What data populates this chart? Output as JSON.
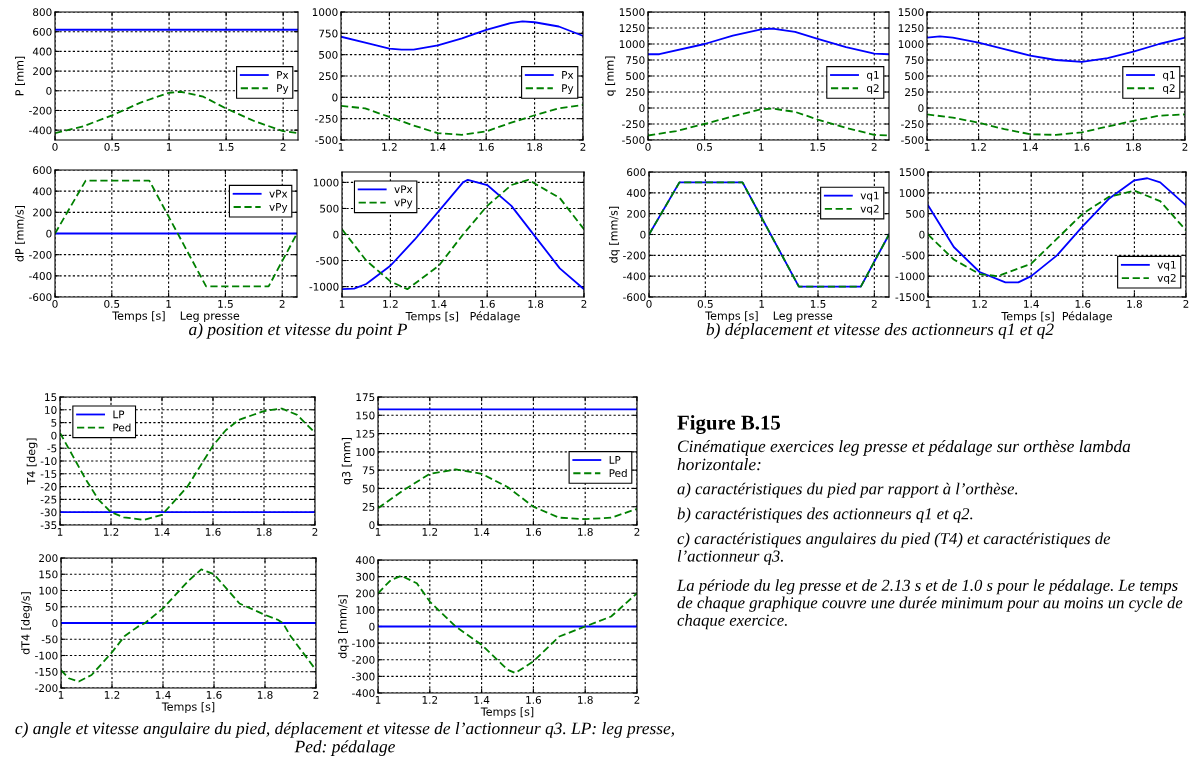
{
  "chart_data": [
    {
      "type": "line",
      "ylabel": "P [mm]",
      "xlim": [
        0,
        2.13
      ],
      "xticks": [
        0,
        0.5,
        1,
        1.5,
        2
      ],
      "ylim": [
        -500,
        800
      ],
      "yticks": [
        -400,
        -200,
        0,
        200,
        400,
        600,
        800
      ],
      "grid": true,
      "legend": "right",
      "series": [
        {
          "name": "Px",
          "color": "#0000ff",
          "line_style": "solid",
          "x": [
            0,
            2.13
          ],
          "values": [
            620,
            620
          ]
        },
        {
          "name": "Py",
          "color": "#008000",
          "line_style": "dashed",
          "x": [
            0,
            0.25,
            0.5,
            0.75,
            1.0,
            1.1,
            1.3,
            1.5,
            1.75,
            2.0,
            2.13
          ],
          "values": [
            -430,
            -360,
            -250,
            -120,
            -20,
            -10,
            -60,
            -180,
            -310,
            -410,
            -430
          ]
        }
      ]
    },
    {
      "type": "line",
      "xlim": [
        1,
        2
      ],
      "xticks": [
        1,
        1.2,
        1.4,
        1.6,
        1.8,
        2
      ],
      "ylim": [
        -500,
        1000
      ],
      "yticks": [
        -500,
        -250,
        0,
        250,
        500,
        750,
        1000
      ],
      "grid": true,
      "legend": "right",
      "series": [
        {
          "name": "Px",
          "color": "#0000ff",
          "line_style": "solid",
          "x": [
            1.0,
            1.1,
            1.2,
            1.25,
            1.3,
            1.4,
            1.5,
            1.6,
            1.7,
            1.75,
            1.8,
            1.9,
            2.0
          ],
          "values": [
            710,
            640,
            570,
            560,
            560,
            610,
            690,
            790,
            870,
            890,
            880,
            830,
            720
          ]
        },
        {
          "name": "Py",
          "color": "#008000",
          "line_style": "dashed",
          "x": [
            1.0,
            1.1,
            1.2,
            1.3,
            1.4,
            1.5,
            1.6,
            1.7,
            1.8,
            1.9,
            2.0
          ],
          "values": [
            -100,
            -130,
            -230,
            -330,
            -420,
            -440,
            -400,
            -300,
            -210,
            -130,
            -90
          ]
        }
      ]
    },
    {
      "type": "line",
      "ylabel": "dP [mm/s]",
      "xlabel": "Temps [s]    Leg presse",
      "xlim": [
        0,
        2.13
      ],
      "xticks": [
        0,
        0.5,
        1,
        1.5,
        2
      ],
      "ylim": [
        -600,
        600
      ],
      "yticks": [
        -600,
        -400,
        -200,
        0,
        200,
        400,
        600
      ],
      "grid": true,
      "legend": "top right",
      "annotations": [
        "a) position et vitesse du point P"
      ],
      "series": [
        {
          "name": "vPx",
          "color": "#0000ff",
          "line_style": "solid",
          "x": [
            0,
            2.13
          ],
          "values": [
            0,
            0
          ]
        },
        {
          "name": "vPy",
          "color": "#008000",
          "line_style": "dashed",
          "x": [
            0,
            0.27,
            0.83,
            1.33,
            1.88,
            2.13
          ],
          "values": [
            0,
            500,
            500,
            -500,
            -500,
            0
          ]
        }
      ]
    },
    {
      "type": "line",
      "xlabel": "Temps [s]   Pédalage",
      "xlim": [
        1,
        2
      ],
      "xticks": [
        1,
        1.2,
        1.4,
        1.6,
        1.8,
        2
      ],
      "ylim": [
        -1200,
        1200
      ],
      "yticks": [
        -1000,
        -500,
        0,
        500,
        1000
      ],
      "grid": true,
      "legend": "top left",
      "series": [
        {
          "name": "vPx",
          "color": "#0000ff",
          "line_style": "solid",
          "x": [
            1.0,
            1.05,
            1.1,
            1.2,
            1.3,
            1.4,
            1.5,
            1.52,
            1.6,
            1.7,
            1.8,
            1.9,
            2.0
          ],
          "values": [
            -1050,
            -1040,
            -950,
            -600,
            -100,
            450,
            1000,
            1050,
            950,
            550,
            -50,
            -650,
            -1050
          ]
        },
        {
          "name": "vPy",
          "color": "#008000",
          "line_style": "dashed",
          "x": [
            1.0,
            1.1,
            1.2,
            1.27,
            1.4,
            1.5,
            1.6,
            1.7,
            1.77,
            1.9,
            2.0
          ],
          "values": [
            100,
            -500,
            -900,
            -1050,
            -600,
            0,
            550,
            950,
            1050,
            700,
            100
          ]
        }
      ]
    },
    {
      "type": "line",
      "ylabel": "q [mm]",
      "xlim": [
        0,
        2.13
      ],
      "xticks": [
        0,
        0.5,
        1,
        1.5,
        2
      ],
      "ylim": [
        -500,
        1500
      ],
      "yticks": [
        -500,
        -250,
        0,
        250,
        500,
        750,
        1000,
        1250,
        1500
      ],
      "grid": true,
      "legend": "right",
      "series": [
        {
          "name": "q1",
          "color": "#0000ff",
          "line_style": "solid",
          "x": [
            0,
            0.1,
            0.5,
            0.75,
            1.0,
            1.1,
            1.3,
            1.5,
            1.75,
            2.0,
            2.13
          ],
          "values": [
            840,
            840,
            1000,
            1130,
            1230,
            1240,
            1190,
            1080,
            950,
            850,
            840
          ]
        },
        {
          "name": "q2",
          "color": "#008000",
          "line_style": "dashed",
          "x": [
            0,
            0.25,
            0.5,
            0.75,
            1.0,
            1.1,
            1.3,
            1.5,
            1.75,
            2.0,
            2.13
          ],
          "values": [
            -430,
            -360,
            -250,
            -130,
            -20,
            -10,
            -60,
            -180,
            -310,
            -420,
            -430
          ]
        }
      ]
    },
    {
      "type": "line",
      "xlim": [
        1,
        2
      ],
      "xticks": [
        1,
        1.2,
        1.4,
        1.6,
        1.8,
        2
      ],
      "ylim": [
        -500,
        1500
      ],
      "yticks": [
        -500,
        -250,
        0,
        250,
        500,
        750,
        1000,
        1250,
        1500
      ],
      "grid": true,
      "legend": "right",
      "series": [
        {
          "name": "q1",
          "color": "#0000ff",
          "line_style": "solid",
          "x": [
            1.0,
            1.05,
            1.1,
            1.2,
            1.3,
            1.4,
            1.5,
            1.6,
            1.7,
            1.8,
            1.9,
            2.0
          ],
          "values": [
            1100,
            1120,
            1100,
            1020,
            920,
            820,
            750,
            720,
            780,
            880,
            1000,
            1100
          ]
        },
        {
          "name": "q2",
          "color": "#008000",
          "line_style": "dashed",
          "x": [
            1.0,
            1.1,
            1.2,
            1.3,
            1.4,
            1.5,
            1.6,
            1.7,
            1.8,
            1.9,
            2.0
          ],
          "values": [
            -100,
            -150,
            -230,
            -330,
            -410,
            -420,
            -380,
            -290,
            -200,
            -120,
            -100
          ]
        }
      ]
    },
    {
      "type": "line",
      "ylabel": "dq [mm/s]",
      "xlabel": "Temps [s]    Leg presse",
      "xlim": [
        0,
        2.13
      ],
      "xticks": [
        0,
        0.5,
        1,
        1.5,
        2
      ],
      "ylim": [
        -600,
        600
      ],
      "yticks": [
        -600,
        -400,
        -200,
        0,
        200,
        400,
        600
      ],
      "grid": true,
      "legend": "top right",
      "annotations": [
        "b) déplacement et vitesse des actionneurs q1 et q2"
      ],
      "series": [
        {
          "name": "vq1",
          "color": "#0000ff",
          "line_style": "solid",
          "x": [
            0,
            0.27,
            0.83,
            1.33,
            1.88,
            2.13
          ],
          "values": [
            0,
            500,
            500,
            -500,
            -500,
            0
          ]
        },
        {
          "name": "vq2",
          "color": "#008000",
          "line_style": "dashed",
          "x": [
            0,
            0.27,
            0.83,
            1.33,
            1.88,
            2.13
          ],
          "values": [
            0,
            500,
            500,
            -500,
            -500,
            0
          ]
        }
      ]
    },
    {
      "type": "line",
      "xlabel": "Temps [s]  Pédalage",
      "xlim": [
        1,
        2
      ],
      "xticks": [
        1,
        1.2,
        1.4,
        1.6,
        1.8,
        2
      ],
      "ylim": [
        -1500,
        1500
      ],
      "yticks": [
        -1500,
        -1000,
        -500,
        0,
        500,
        1000,
        1500
      ],
      "grid": true,
      "legend": "bottom right",
      "series": [
        {
          "name": "vq1",
          "color": "#0000ff",
          "line_style": "solid",
          "x": [
            1.0,
            1.1,
            1.2,
            1.3,
            1.35,
            1.4,
            1.5,
            1.6,
            1.7,
            1.8,
            1.85,
            1.9,
            2.0
          ],
          "values": [
            700,
            -300,
            -900,
            -1150,
            -1150,
            -1000,
            -500,
            200,
            850,
            1300,
            1350,
            1250,
            700
          ]
        },
        {
          "name": "vq2",
          "color": "#008000",
          "line_style": "dashed",
          "x": [
            1.0,
            1.1,
            1.2,
            1.27,
            1.4,
            1.5,
            1.6,
            1.7,
            1.8,
            1.9,
            2.0
          ],
          "values": [
            0,
            -600,
            -950,
            -1000,
            -700,
            -100,
            500,
            900,
            1050,
            800,
            100
          ]
        }
      ]
    },
    {
      "type": "line",
      "ylabel": "T4 [deg]",
      "xlim": [
        1,
        2
      ],
      "xticks": [
        1,
        1.2,
        1.4,
        1.6,
        1.8,
        2
      ],
      "ylim": [
        -35,
        15
      ],
      "yticks": [
        -35,
        -30,
        -25,
        -20,
        -15,
        -10,
        -5,
        0,
        5,
        10,
        15
      ],
      "grid": true,
      "legend": "top left",
      "series": [
        {
          "name": "LP",
          "color": "#0000ff",
          "line_style": "solid",
          "x": [
            1,
            2
          ],
          "values": [
            -30,
            -30
          ]
        },
        {
          "name": "Ped",
          "color": "#008000",
          "line_style": "dashed",
          "x": [
            1.0,
            1.05,
            1.1,
            1.15,
            1.2,
            1.25,
            1.33,
            1.4,
            1.5,
            1.6,
            1.65,
            1.7,
            1.8,
            1.87,
            1.93,
            2.0
          ],
          "values": [
            1,
            -8,
            -17,
            -25,
            -30,
            -32,
            -33,
            -31,
            -20,
            -4,
            2,
            6,
            9.5,
            10.5,
            8,
            1
          ]
        }
      ]
    },
    {
      "type": "line",
      "ylabel": "q3 [mm]",
      "xlim": [
        1,
        2
      ],
      "xticks": [
        1,
        1.2,
        1.4,
        1.6,
        1.8,
        2
      ],
      "ylim": [
        0,
        175
      ],
      "yticks": [
        0,
        25,
        50,
        75,
        100,
        125,
        150,
        175
      ],
      "grid": true,
      "legend": "right",
      "series": [
        {
          "name": "LP",
          "color": "#0000ff",
          "line_style": "solid",
          "x": [
            1,
            2
          ],
          "values": [
            158,
            158
          ]
        },
        {
          "name": "Ped",
          "color": "#008000",
          "line_style": "dashed",
          "x": [
            1.0,
            1.1,
            1.2,
            1.3,
            1.4,
            1.5,
            1.6,
            1.7,
            1.8,
            1.9,
            2.0
          ],
          "values": [
            23,
            48,
            70,
            76,
            70,
            52,
            25,
            10,
            8,
            10,
            22
          ]
        }
      ]
    },
    {
      "type": "line",
      "ylabel": "dT4 [deg/s]",
      "xlabel": "Temps [s]",
      "xlim": [
        1,
        2
      ],
      "xticks": [
        1,
        1.2,
        1.4,
        1.6,
        1.8,
        2
      ],
      "ylim": [
        -200,
        200
      ],
      "yticks": [
        -200,
        -150,
        -100,
        -50,
        0,
        50,
        100,
        150,
        200
      ],
      "grid": true,
      "annotations": [
        "c) angle et vitesse angulaire du pied, déplacement et vitesse de l’actionneur q3. LP: leg presse, Ped: pédalage"
      ],
      "series": [
        {
          "color": "#0000ff",
          "line_style": "solid",
          "x": [
            1,
            2
          ],
          "values": [
            0,
            0
          ]
        },
        {
          "color": "#008000",
          "line_style": "dashed",
          "x": [
            1.0,
            1.03,
            1.07,
            1.12,
            1.2,
            1.25,
            1.3,
            1.33,
            1.4,
            1.5,
            1.55,
            1.6,
            1.7,
            1.8,
            1.85,
            1.87,
            1.9,
            2.0
          ],
          "values": [
            -145,
            -170,
            -180,
            -160,
            -90,
            -40,
            -12,
            0,
            45,
            130,
            165,
            150,
            60,
            25,
            10,
            0,
            -40,
            -145
          ]
        }
      ]
    },
    {
      "type": "line",
      "ylabel": "dq3 [mm/s]",
      "xlabel": "Temps [s]",
      "xlim": [
        1,
        2
      ],
      "xticks": [
        1,
        1.2,
        1.4,
        1.6,
        1.8,
        2
      ],
      "ylim": [
        -400,
        400
      ],
      "yticks": [
        -400,
        -300,
        -200,
        -100,
        0,
        100,
        200,
        300,
        400
      ],
      "grid": true,
      "series": [
        {
          "color": "#0000ff",
          "line_style": "solid",
          "x": [
            1,
            2
          ],
          "values": [
            0,
            0
          ]
        },
        {
          "color": "#008000",
          "line_style": "dashed",
          "x": [
            1.0,
            1.05,
            1.09,
            1.15,
            1.2,
            1.3,
            1.4,
            1.5,
            1.53,
            1.6,
            1.7,
            1.8,
            1.9,
            2.0
          ],
          "values": [
            200,
            280,
            305,
            260,
            150,
            0,
            -110,
            -260,
            -280,
            -210,
            -60,
            0,
            60,
            200
          ]
        }
      ]
    },
    {
      "type": "other",
      "title": "Figure B.15",
      "subtitle": "Cinématique exercices leg presse et pédalage sur orthèse lambda horizontale:",
      "annotations": [
        "a) caractéristiques du pied par rapport à l’orthèse.",
        "b) caractéristiques des actionneurs q1 et q2.",
        "c) caractéristiques angulaires du pied (T4) et caractéristiques de l’actionneur q3.",
        "La période du leg presse et de 2.13 s et de 1.0 s pour le pédalage. Le temps de chaque graphique couvre une durée minimum pour au moins un cycle de chaque exercice."
      ]
    }
  ]
}
